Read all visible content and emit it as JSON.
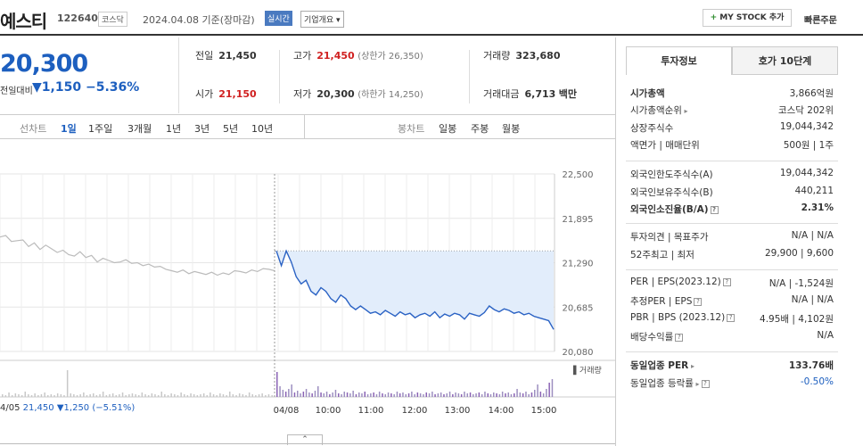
{
  "header": {
    "company": "예스티",
    "code": "122640",
    "market": "코스닥",
    "date": "2024.04.08 기준(장마감)",
    "live_label": "실시간",
    "overview_label": "기업개요 ▾",
    "mystock_plus": "+",
    "mystock_label": "MY STOCK 추가",
    "quick_order": "빠른주문"
  },
  "quote": {
    "price": "20,300",
    "vs_label": "전일대비",
    "change_arrow": "▼",
    "change": "1,150",
    "change_pct": "−5.36%"
  },
  "stats": {
    "prev_label": "전일",
    "prev": "21,450",
    "high_label": "고가",
    "high": "21,450",
    "upper_limit": "(상한가 26,350)",
    "volume_label": "거래량",
    "volume": "323,680",
    "open_label": "시가",
    "open": "21,150",
    "low_label": "저가",
    "low": "20,300",
    "lower_limit": "(하한가 14,250)",
    "amount_label": "거래대금",
    "amount": "6,713",
    "amount_unit": "백만"
  },
  "chart_tabs": {
    "line_label": "선차트",
    "periods": [
      "1일",
      "1주일",
      "3개월",
      "1년",
      "3년",
      "5년",
      "10년"
    ],
    "active": "1일",
    "candle_label": "봉차트",
    "candle_periods": [
      "일봉",
      "주봉",
      "월봉"
    ]
  },
  "chart_data": {
    "type": "line",
    "y_ticks": [
      "22,500",
      "21,895",
      "21,290",
      "20,685",
      "20,080"
    ],
    "ylim": [
      20080,
      22500
    ],
    "x_labels": [
      "04/08",
      "10:00",
      "11:00",
      "12:00",
      "13:00",
      "14:00",
      "15:00"
    ],
    "prev_close": 21450,
    "volume_label": "거래량",
    "series": [
      {
        "values": [
          21640,
          21660,
          21580,
          21590,
          21600,
          21510,
          21560,
          21470,
          21530,
          21480,
          21430,
          21460,
          21400,
          21380,
          21440,
          21360,
          21390,
          21300,
          21350,
          21320,
          21290,
          21300,
          21330,
          21280,
          21290,
          21250,
          21270,
          21230,
          21240,
          21200,
          21180,
          21160,
          21190,
          21140,
          21170,
          21150,
          21130,
          21160,
          21120,
          21150,
          21130,
          21180,
          21170,
          21150,
          21190,
          21170,
          21210,
          21200,
          21180
        ]
      },
      {
        "values": [
          21450,
          21250,
          21450,
          21300,
          21100,
          21000,
          21050,
          20900,
          20850,
          20950,
          20900,
          20800,
          20750,
          20850,
          20800,
          20700,
          20650,
          20700,
          20650,
          20600,
          20620,
          20580,
          20640,
          20600,
          20560,
          20620,
          20580,
          20600,
          20540,
          20580,
          20600,
          20560,
          20620,
          20540,
          20590,
          20560,
          20600,
          20580,
          20520,
          20600,
          20580,
          20560,
          20610,
          20700,
          20650,
          20620,
          20660,
          20640,
          20600,
          20620,
          20580,
          20600,
          20560,
          20540,
          20520,
          20500,
          20380
        ]
      }
    ]
  },
  "footer": {
    "date": "4/05",
    "close": "21,450",
    "change": "▼1,250",
    "pct": "(−5.51%)",
    "collapse": "⌃"
  },
  "right_panel": {
    "tab_info": "투자정보",
    "tab_quote": "호가 10단계",
    "rows": [
      {
        "k": "시가총액",
        "v": "3,866억원"
      },
      {
        "k": "시가총액순위",
        "v": "코스닥 202위"
      },
      {
        "k": "상장주식수",
        "v": "19,044,342"
      },
      {
        "k": "액면가 | 매매단위",
        "v": "500원 | 1주"
      },
      {
        "k": "외국인한도주식수(A)",
        "v": "19,044,342"
      },
      {
        "k": "외국인보유주식수(B)",
        "v": "440,211"
      },
      {
        "k": "외국인소진율(B/A)",
        "v": "2.31%"
      },
      {
        "k": "투자의견 | 목표주가",
        "v": "N/A | N/A"
      },
      {
        "k": "52주최고 | 최저",
        "v": "29,900 | 9,600"
      },
      {
        "k": "PER | EPS(2023.12)",
        "v": "N/A | -1,524원"
      },
      {
        "k": "추정PER | EPS",
        "v": "N/A | N/A"
      },
      {
        "k": "PBR | BPS (2023.12)",
        "v": "4.95배 | 4,102원"
      },
      {
        "k": "배당수익률",
        "v": "N/A"
      },
      {
        "k": "동일업종 PER",
        "v": "133.76배"
      },
      {
        "k": "동일업종 등락률",
        "v": "-0.50%"
      }
    ]
  }
}
